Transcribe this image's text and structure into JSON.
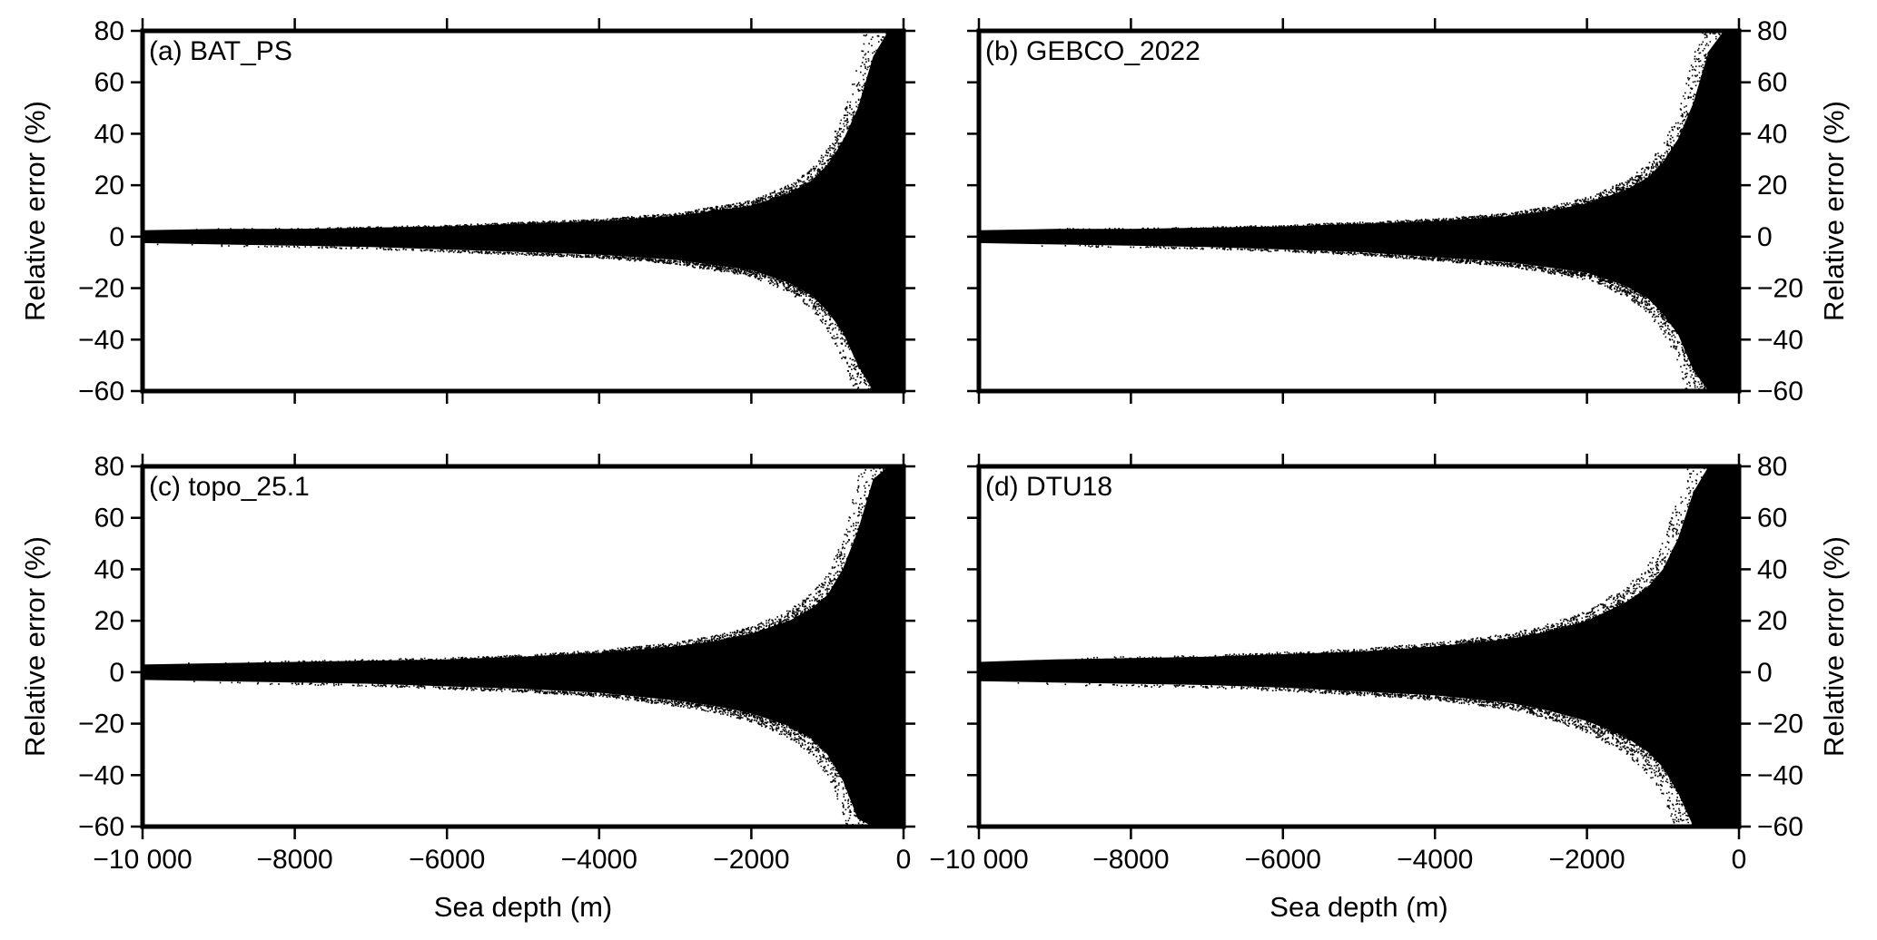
{
  "chart_data": [
    {
      "type": "scatter",
      "panel_label": "(a) BAT_PS",
      "xlabel": "",
      "ylabel": "Relative error (%)",
      "xlim": [
        -10000,
        0
      ],
      "ylim": [
        -60,
        80
      ],
      "xticks": [
        -10000,
        -8000,
        -6000,
        -4000,
        -2000,
        0
      ],
      "xtick_labels": [
        "",
        "",
        "",
        "",
        "",
        ""
      ],
      "yticks": [
        -60,
        -40,
        -20,
        0,
        20,
        40,
        60,
        80
      ],
      "ytick_labels": [
        "−60",
        "−40",
        "−20",
        "0",
        "20",
        "40",
        "60",
        "80"
      ],
      "ylabel_side": "left",
      "envelope": {
        "depth": [
          -10000,
          -9000,
          -8000,
          -7000,
          -6000,
          -5000,
          -4000,
          -3000,
          -2500,
          -2000,
          -1500,
          -1200,
          -1000,
          -800,
          -600,
          -400,
          -200,
          0
        ],
        "upper": [
          2.5,
          3,
          3,
          3.5,
          4,
          5,
          6,
          8,
          10,
          12,
          17,
          22,
          28,
          37,
          50,
          70,
          80,
          80
        ],
        "lower": [
          -2.5,
          -3,
          -3.5,
          -4,
          -5,
          -6,
          -7,
          -9,
          -11,
          -13,
          -18,
          -23,
          -29,
          -37,
          -50,
          -60,
          -60,
          -60
        ]
      }
    },
    {
      "type": "scatter",
      "panel_label": "(b) GEBCO_2022",
      "xlabel": "",
      "ylabel": "Relative error (%)",
      "xlim": [
        -10000,
        0
      ],
      "ylim": [
        -60,
        80
      ],
      "xticks": [
        -10000,
        -8000,
        -6000,
        -4000,
        -2000,
        0
      ],
      "xtick_labels": [
        "",
        "",
        "",
        "",
        "",
        ""
      ],
      "yticks": [
        -60,
        -40,
        -20,
        0,
        20,
        40,
        60,
        80
      ],
      "ytick_labels": [
        "−60",
        "−40",
        "−20",
        "0",
        "20",
        "40",
        "60",
        "80"
      ],
      "ylabel_side": "right",
      "envelope": {
        "depth": [
          -10000,
          -9000,
          -8000,
          -7000,
          -6000,
          -5000,
          -4000,
          -3000,
          -2500,
          -2000,
          -1500,
          -1200,
          -1000,
          -800,
          -600,
          -400,
          -200,
          0
        ],
        "upper": [
          2.5,
          3,
          3,
          3.5,
          4,
          5,
          6,
          8,
          10,
          13,
          18,
          23,
          29,
          38,
          52,
          72,
          80,
          80
        ],
        "lower": [
          -2.5,
          -3,
          -3.5,
          -4,
          -5,
          -6,
          -8,
          -10,
          -12,
          -14,
          -19,
          -24,
          -30,
          -38,
          -52,
          -60,
          -60,
          -60
        ]
      }
    },
    {
      "type": "scatter",
      "panel_label": "(c) topo_25.1",
      "xlabel": "Sea depth (m)",
      "ylabel": "Relative error (%)",
      "xlim": [
        -10000,
        0
      ],
      "ylim": [
        -60,
        80
      ],
      "xticks": [
        -10000,
        -8000,
        -6000,
        -4000,
        -2000,
        0
      ],
      "xtick_labels": [
        "−10 000",
        "−8000",
        "−6000",
        "−4000",
        "−2000",
        "0"
      ],
      "yticks": [
        -60,
        -40,
        -20,
        0,
        20,
        40,
        60,
        80
      ],
      "ytick_labels": [
        "−60",
        "−40",
        "−20",
        "0",
        "20",
        "40",
        "60",
        "80"
      ],
      "ylabel_side": "left",
      "envelope": {
        "depth": [
          -10000,
          -9000,
          -8000,
          -7000,
          -6000,
          -5000,
          -4000,
          -3000,
          -2500,
          -2000,
          -1500,
          -1200,
          -1000,
          -800,
          -600,
          -400,
          -200,
          0
        ],
        "upper": [
          3,
          3.5,
          4,
          4.5,
          5,
          6,
          7.5,
          10,
          12,
          15,
          20,
          25,
          30,
          40,
          55,
          75,
          80,
          80
        ],
        "lower": [
          -3,
          -3.5,
          -4,
          -4.5,
          -5.5,
          -6.5,
          -8,
          -11,
          -13,
          -16,
          -21,
          -26,
          -32,
          -42,
          -57,
          -60,
          -60,
          -60
        ]
      }
    },
    {
      "type": "scatter",
      "panel_label": "(d) DTU18",
      "xlabel": "Sea depth (m)",
      "ylabel": "Relative error (%)",
      "xlim": [
        -10000,
        0
      ],
      "ylim": [
        -60,
        80
      ],
      "xticks": [
        -10000,
        -8000,
        -6000,
        -4000,
        -2000,
        0
      ],
      "xtick_labels": [
        "−10 000",
        "−8000",
        "−6000",
        "−4000",
        "−2000",
        "0"
      ],
      "yticks": [
        -60,
        -40,
        -20,
        0,
        20,
        40,
        60,
        80
      ],
      "ytick_labels": [
        "−60",
        "−40",
        "−20",
        "0",
        "20",
        "40",
        "60",
        "80"
      ],
      "ylabel_side": "right",
      "envelope": {
        "depth": [
          -10000,
          -9000,
          -8000,
          -7000,
          -6000,
          -5000,
          -4000,
          -3000,
          -2500,
          -2000,
          -1500,
          -1200,
          -1000,
          -800,
          -600,
          -400,
          -200,
          0
        ],
        "upper": [
          4,
          5,
          5.5,
          6,
          7,
          8,
          10,
          13,
          16,
          20,
          27,
          33,
          40,
          52,
          70,
          80,
          80,
          80
        ],
        "lower": [
          -3.5,
          -4,
          -4.5,
          -5,
          -6,
          -7.5,
          -9,
          -12,
          -15,
          -19,
          -25,
          -31,
          -37,
          -47,
          -60,
          -60,
          -60,
          -60
        ]
      }
    }
  ]
}
